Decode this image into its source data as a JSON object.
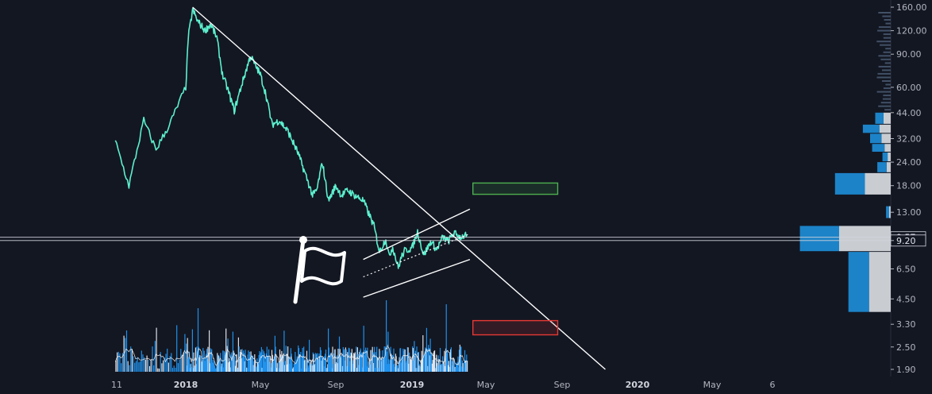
{
  "chart_data": {
    "type": "line",
    "title": "",
    "y_scale": "log",
    "y_ticks": [
      "160.00",
      "120.00",
      "90.00",
      "60.00",
      "44.00",
      "32.00",
      "24.00",
      "18.00",
      "13.00",
      "9.57",
      "9.20",
      "6.50",
      "4.50",
      "3.30",
      "2.50",
      "1.90"
    ],
    "x_ticks": [
      "11",
      "2018",
      "May",
      "Sep",
      "2019",
      "May",
      "Sep",
      "2020",
      "May",
      "6"
    ],
    "bold_x_ticks": [
      "2018",
      "2019",
      "2020"
    ],
    "current_price_labels": [
      "9.57",
      "9.20"
    ],
    "series": [
      {
        "color": "#5cf0cf",
        "x": [
          "2017-11-10",
          "2017-11-20",
          "2017-12-01",
          "2017-12-10",
          "2017-12-20",
          "2018-01-01",
          "2018-01-05",
          "2018-01-12",
          "2018-01-20",
          "2018-02-01",
          "2018-02-10",
          "2018-02-20",
          "2018-03-01",
          "2018-03-10",
          "2018-03-20",
          "2018-04-01",
          "2018-04-15",
          "2018-05-01",
          "2018-05-10",
          "2018-05-20",
          "2018-06-01",
          "2018-06-15",
          "2018-07-01",
          "2018-07-15",
          "2018-07-25",
          "2018-08-01",
          "2018-08-10",
          "2018-08-20",
          "2018-09-01",
          "2018-09-10",
          "2018-09-20",
          "2018-10-01",
          "2018-10-15",
          "2018-11-01",
          "2018-11-10",
          "2018-11-20",
          "2018-11-25",
          "2018-12-01",
          "2018-12-10",
          "2018-12-15",
          "2018-12-20",
          "2019-01-01",
          "2019-01-10",
          "2019-01-20",
          "2019-02-01",
          "2019-02-10",
          "2019-02-20",
          "2019-03-01",
          "2019-03-10",
          "2019-03-20",
          "2019-03-31"
        ],
        "values": [
          31,
          18,
          40,
          28,
          38,
          60,
          110,
          155,
          135,
          120,
          130,
          110,
          70,
          58,
          45,
          62,
          88,
          70,
          55,
          38,
          40,
          35,
          27,
          20,
          16,
          17,
          24,
          15,
          18,
          16,
          17,
          16,
          15,
          11,
          8,
          9.4,
          7.6,
          8.5,
          6.6,
          7.5,
          8.1,
          8.4,
          10.2,
          7.7,
          9.1,
          8.2,
          9.6,
          9.1,
          10.1,
          9.6,
          9.8
        ]
      }
    ],
    "volume_profile": [
      {
        "price_low": 38,
        "price_high": 44,
        "buy": 0.16,
        "sell": 0.14
      },
      {
        "price_low": 34,
        "price_high": 38,
        "buy": 0.32,
        "sell": 0.22
      },
      {
        "price_low": 30,
        "price_high": 34,
        "buy": 0.22,
        "sell": 0.18
      },
      {
        "price_low": 27,
        "price_high": 30,
        "buy": 0.24,
        "sell": 0.12
      },
      {
        "price_low": 24,
        "price_high": 27,
        "buy": 0.1,
        "sell": 0.06
      },
      {
        "price_low": 21,
        "price_high": 24,
        "buy": 0.18,
        "sell": 0.08
      },
      {
        "price_low": 16,
        "price_high": 21,
        "buy": 0.58,
        "sell": 0.5
      },
      {
        "price_low": 12,
        "price_high": 14,
        "buy": 0.06,
        "sell": 0.03
      },
      {
        "price_low": 8,
        "price_high": 11,
        "buy": 0.76,
        "sell": 1.0
      },
      {
        "price_low": 3.8,
        "price_high": 8,
        "buy": 0.4,
        "sell": 0.42
      }
    ],
    "annotations": [
      {
        "type": "trendline",
        "color": "#ffffff",
        "from": {
          "x": "2018-01-12",
          "y": 160
        },
        "to": {
          "x": "2019-11-10",
          "y": 1.9
        }
      },
      {
        "type": "channel-upper",
        "color": "#ffffff",
        "from": {
          "x": "2018-10-15",
          "y": 7.3
        },
        "to": {
          "x": "2019-04-05",
          "y": 13.5
        }
      },
      {
        "type": "channel-lower",
        "color": "#ffffff",
        "from": {
          "x": "2018-10-15",
          "y": 4.6
        },
        "to": {
          "x": "2019-04-05",
          "y": 7.3
        }
      },
      {
        "type": "channel-mid",
        "color": "#ffffff",
        "from": {
          "x": "2018-10-15",
          "y": 5.9
        },
        "to": {
          "x": "2019-04-05",
          "y": 10.0
        }
      },
      {
        "type": "target-box",
        "color": "#4caf50",
        "x0": "2019-04-10",
        "x1": "2019-08-25",
        "y0": 16.2,
        "y1": 18.6
      },
      {
        "type": "stop-box",
        "color": "#e53935",
        "x0": "2019-04-10",
        "x1": "2019-08-25",
        "y0": 2.9,
        "y1": 3.45
      },
      {
        "type": "flag-icon",
        "icon": "flag-icon",
        "color": "#ffffff"
      }
    ],
    "colors": {
      "background": "#131722",
      "price_line": "#5cf0cf",
      "volume_bar": "#2196f3",
      "volume_ma": "#ffffff",
      "profile_buy": "#1c83c8",
      "profile_sell": "#c9ccd1",
      "profile_faded": "#4a5a72"
    }
  }
}
